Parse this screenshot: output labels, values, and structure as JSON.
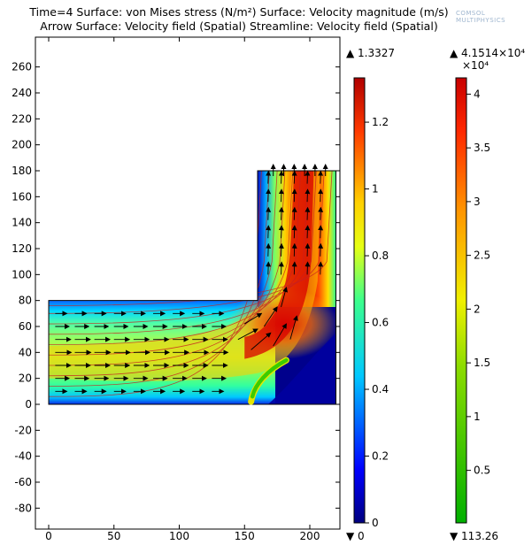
{
  "chart_data": {
    "type": "heatmap",
    "title_line1": "Time=4   Surface: von Mises stress (N/m²)  Surface: Velocity magnitude (m/s)",
    "title_line2": "Arrow Surface: Velocity field (Spatial)  Streamline: Velocity field (Spatial)",
    "x_ticks": [
      0,
      50,
      100,
      150,
      200
    ],
    "y_ticks": [
      260,
      240,
      220,
      200,
      180,
      160,
      140,
      120,
      100,
      80,
      60,
      40,
      20,
      0,
      -20,
      -40,
      -60,
      -80
    ],
    "xlim": [
      0,
      225
    ],
    "ylim": [
      -92,
      275
    ],
    "grid": false,
    "colorbars": [
      {
        "quantity": "Velocity magnitude (m/s)",
        "max_label": "▲ 1.3327",
        "min_label": "▼ 0",
        "min": 0,
        "max": 1.3327,
        "ticks": [
          "1.2",
          "1",
          "0.8",
          "0.6",
          "0.4",
          "0.2",
          "0"
        ],
        "tick_values": [
          1.2,
          1,
          0.8,
          0.6,
          0.4,
          0.2,
          0
        ],
        "colormap": "rainbow"
      },
      {
        "quantity": "von Mises stress (N/m²)",
        "max_label": "▲ 4.1514×10⁴",
        "exponent_label": "×10⁴",
        "min_label": "▼ 113.26",
        "min": 113.26,
        "max": 41514,
        "ticks": [
          "4",
          "3.5",
          "3",
          "2.5",
          "2",
          "1.5",
          "1",
          "0.5"
        ],
        "tick_values": [
          40000,
          35000,
          30000,
          25000,
          20000,
          15000,
          10000,
          5000
        ],
        "colormap": "traffic"
      }
    ],
    "geometry": {
      "horizontal_channel": {
        "x": [
          0,
          160
        ],
        "y": [
          0,
          80
        ]
      },
      "vertical_channel": {
        "x": [
          160,
          220
        ],
        "y": [
          0,
          180
        ]
      },
      "flap_base": [
        155,
        2
      ],
      "flap_tip": [
        182,
        34
      ]
    }
  },
  "logo": {
    "line1": "COMSOL",
    "line2": "MULTIPHYSICS"
  }
}
